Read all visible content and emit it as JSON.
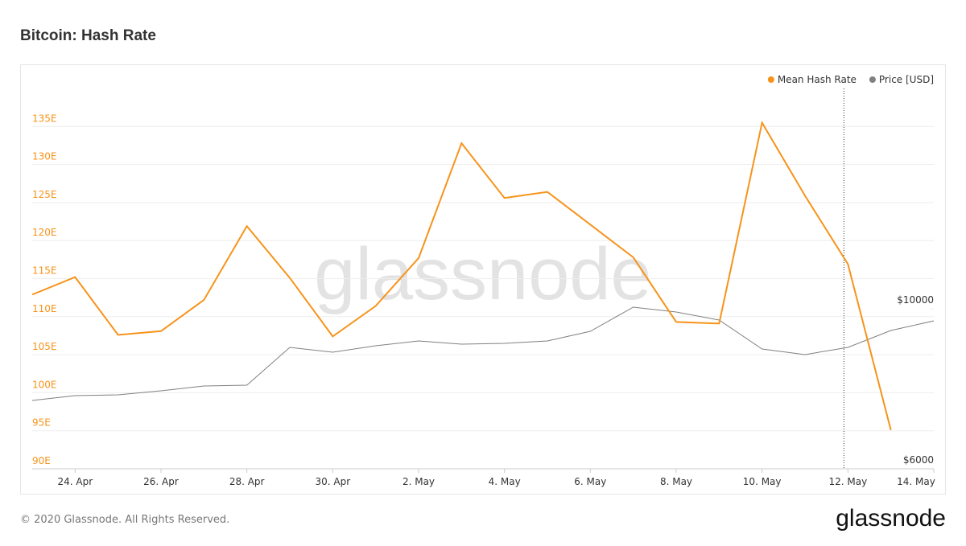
{
  "chart_data": {
    "type": "line",
    "title": "Bitcoin: Hash Rate",
    "categories": [
      null,
      "24. Apr",
      null,
      "26. Apr",
      null,
      "28. Apr",
      null,
      "30. Apr",
      null,
      "2. May",
      null,
      "4. May",
      null,
      "6. May",
      null,
      "8. May",
      null,
      "10. May",
      null,
      "12. May",
      null,
      "14. May"
    ],
    "series": [
      {
        "name": "Mean Hash Rate",
        "color": "#f7931a",
        "values": [
          112.9,
          115.2,
          107.6,
          108.1,
          112.2,
          121.9,
          115.1,
          107.4,
          111.4,
          117.7,
          132.8,
          125.6,
          126.4,
          122.1,
          117.8,
          109.3,
          109.1,
          135.5,
          125.9,
          116.9,
          95.1,
          null
        ]
      },
      {
        "name": "Price [USD]",
        "color": "#808080",
        "axis": "y2",
        "values": [
          7707,
          7828,
          7848,
          7948,
          8069,
          8089,
          9033,
          8912,
          9073,
          9193,
          9113,
          9133,
          9193,
          9434,
          10037,
          9917,
          9716,
          8993,
          8852,
          9033,
          9454,
          9696
        ]
      }
    ],
    "ylim": [
      90,
      140
    ],
    "yticks": [
      {
        "value": 90,
        "label": "90E"
      },
      {
        "value": 95,
        "label": "95E"
      },
      {
        "value": 100,
        "label": "100E"
      },
      {
        "value": 105,
        "label": "105E"
      },
      {
        "value": 110,
        "label": "110E"
      },
      {
        "value": 115,
        "label": "115E"
      },
      {
        "value": 120,
        "label": "120E"
      },
      {
        "value": 125,
        "label": "125E"
      },
      {
        "value": 130,
        "label": "130E"
      },
      {
        "value": 135,
        "label": "135E"
      }
    ],
    "y2lim": [
      6000,
      15500
    ],
    "y2ticks": [
      {
        "value": 6000,
        "label": "$6000"
      },
      {
        "value": 10000,
        "label": "$10000"
      }
    ],
    "grid": true,
    "legend": "top-right"
  },
  "watermark": "glassnode",
  "footer": {
    "copyright": "© 2020 Glassnode. All Rights Reserved.",
    "logo": "glassnode"
  }
}
